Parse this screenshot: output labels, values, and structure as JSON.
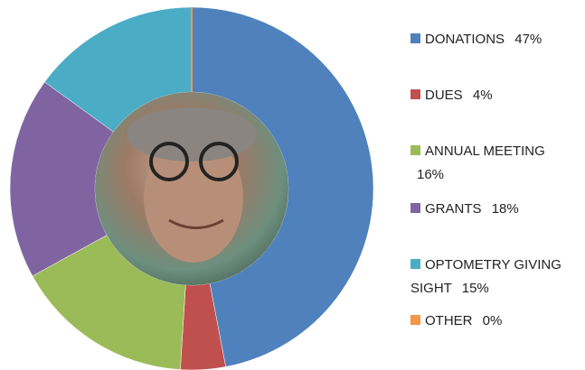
{
  "chart_data": {
    "type": "donut",
    "categories": [
      "DONATIONS",
      "DUES",
      "ANNUAL MEETING",
      "GRANTS",
      "OPTOMETRY GIVING SIGHT",
      "OTHER"
    ],
    "values": [
      47,
      4,
      16,
      18,
      15,
      0
    ],
    "value_labels": [
      "47%",
      "4%",
      "16%",
      "18%",
      "15%",
      "0%"
    ],
    "colors": [
      "#4f81bd",
      "#c0504d",
      "#9bbb59",
      "#8064a2",
      "#4bacc6",
      "#f79646"
    ]
  }
}
